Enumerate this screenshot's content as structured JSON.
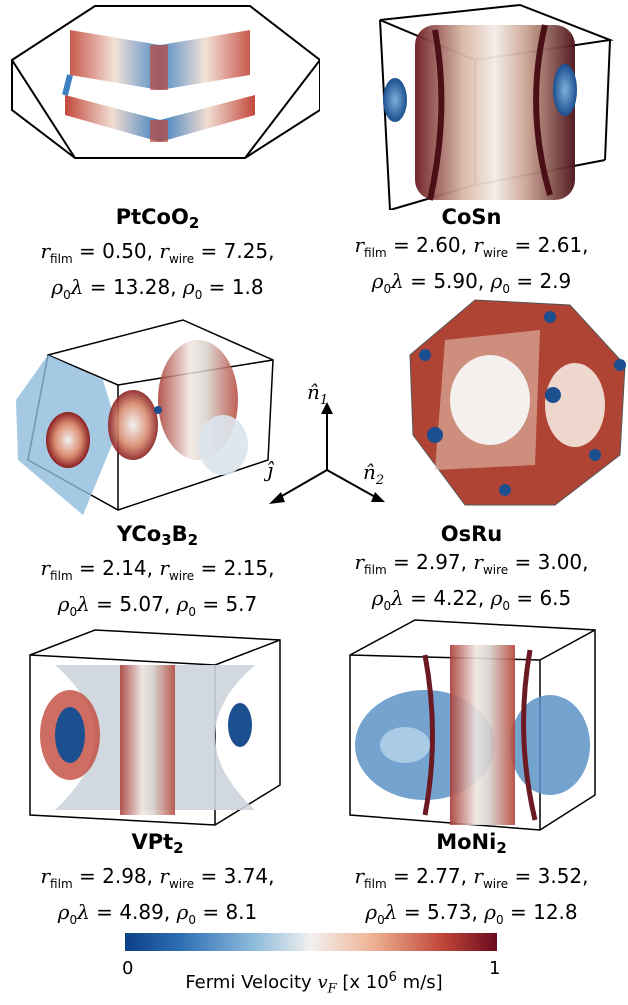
{
  "materials": [
    {
      "name_base": "PtCoO",
      "name_sub": "2",
      "r_film": "0.50",
      "r_wire": "7.25",
      "rho0_lambda": "13.28",
      "rho0": "1.8"
    },
    {
      "name_base": "CoSn",
      "name_sub": "",
      "r_film": "2.60",
      "r_wire": "2.61",
      "rho0_lambda": "5.90",
      "rho0": "2.9"
    },
    {
      "name_base": "YCo",
      "name_sub": "3",
      "name_tail": "B",
      "name_sub2": "2",
      "r_film": "2.14",
      "r_wire": "2.15",
      "rho0_lambda": "5.07",
      "rho0": "5.7"
    },
    {
      "name_base": "OsRu",
      "name_sub": "",
      "r_film": "2.97",
      "r_wire": "3.00",
      "rho0_lambda": "4.22",
      "rho0": "6.5"
    },
    {
      "name_base": "VPt",
      "name_sub": "2",
      "r_film": "2.98",
      "r_wire": "3.74",
      "rho0_lambda": "4.89",
      "rho0": "8.1"
    },
    {
      "name_base": "MoNi",
      "name_sub": "2",
      "r_film": "2.77",
      "r_wire": "3.52",
      "rho0_lambda": "5.73",
      "rho0": "12.8"
    }
  ],
  "labels": {
    "r": "r",
    "film": "film",
    "wire": "wire",
    "rho": "ρ",
    "rho_sub": "0",
    "lambda": "λ",
    "eq": " = ",
    "comma": ", "
  },
  "axes": {
    "n1": "n̂",
    "n1_sub": "1",
    "n2": "n̂",
    "n2_sub": "2",
    "j": "ĵ"
  },
  "colorbar": {
    "min": "0",
    "max": "1",
    "label_pre": "Fermi Velocity ",
    "v": "v",
    "v_sub": "F",
    "label_post": " [x 10",
    "exp": "6",
    "unit": " m/s]"
  },
  "colors": {
    "low": "#0d3f85",
    "mid": "#f2f0ef",
    "high": "#6b0a1e"
  }
}
